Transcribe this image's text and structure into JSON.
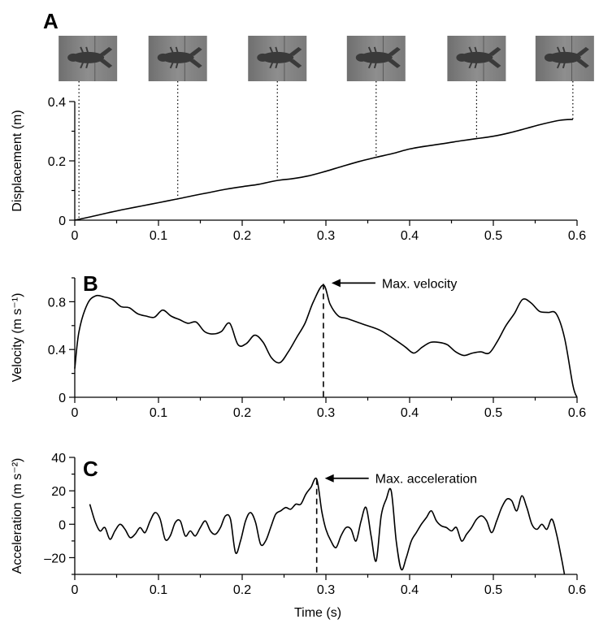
{
  "chart_data": [
    {
      "panel": "A",
      "type": "line",
      "ylabel": "Displacement (m)",
      "xlim": [
        0,
        0.6
      ],
      "ylim": [
        0,
        0.4
      ],
      "xticks": [
        "0",
        "0.1",
        "0.2",
        "0.3",
        "0.4",
        "0.5",
        "0.6"
      ],
      "yticks": [
        "0",
        "0.2",
        "0.4"
      ],
      "frame_times": [
        0.005,
        0.123,
        0.242,
        0.36,
        0.48,
        0.595
      ],
      "frames": [
        "crayfish-frame-1",
        "crayfish-frame-2",
        "crayfish-frame-3",
        "crayfish-frame-4",
        "crayfish-frame-5",
        "crayfish-frame-6"
      ],
      "x": [
        0,
        0.02,
        0.04,
        0.06,
        0.08,
        0.1,
        0.12,
        0.14,
        0.16,
        0.18,
        0.2,
        0.22,
        0.24,
        0.26,
        0.28,
        0.3,
        0.32,
        0.34,
        0.36,
        0.38,
        0.4,
        0.42,
        0.44,
        0.46,
        0.48,
        0.5,
        0.52,
        0.54,
        0.56,
        0.58,
        0.595
      ],
      "y": [
        0,
        0.012,
        0.025,
        0.037,
        0.048,
        0.059,
        0.07,
        0.082,
        0.093,
        0.104,
        0.113,
        0.121,
        0.133,
        0.14,
        0.15,
        0.165,
        0.182,
        0.198,
        0.212,
        0.225,
        0.24,
        0.25,
        0.258,
        0.267,
        0.275,
        0.283,
        0.295,
        0.31,
        0.325,
        0.337,
        0.34
      ]
    },
    {
      "panel": "B",
      "type": "line",
      "ylabel": "Velocity (m s⁻¹)",
      "xlim": [
        0,
        0.6
      ],
      "ylim": [
        0,
        1.0
      ],
      "xticks": [
        "0",
        "0.1",
        "0.2",
        "0.3",
        "0.4",
        "0.5",
        "0.6"
      ],
      "yticks": [
        "0",
        "0.4",
        "0.8"
      ],
      "annotation": {
        "text": "Max. velocity",
        "x": 0.297,
        "y": 0.95
      },
      "x": [
        0,
        0.005,
        0.015,
        0.025,
        0.035,
        0.045,
        0.055,
        0.065,
        0.075,
        0.085,
        0.095,
        0.105,
        0.115,
        0.125,
        0.135,
        0.145,
        0.155,
        0.165,
        0.175,
        0.185,
        0.195,
        0.205,
        0.215,
        0.225,
        0.235,
        0.245,
        0.255,
        0.265,
        0.275,
        0.285,
        0.297,
        0.305,
        0.315,
        0.325,
        0.345,
        0.365,
        0.385,
        0.395,
        0.405,
        0.415,
        0.425,
        0.435,
        0.445,
        0.455,
        0.465,
        0.475,
        0.485,
        0.495,
        0.505,
        0.515,
        0.525,
        0.535,
        0.545,
        0.555,
        0.565,
        0.575,
        0.585,
        0.595,
        0.6
      ],
      "y": [
        0.24,
        0.55,
        0.78,
        0.85,
        0.84,
        0.82,
        0.76,
        0.75,
        0.7,
        0.68,
        0.67,
        0.73,
        0.68,
        0.65,
        0.62,
        0.63,
        0.55,
        0.53,
        0.55,
        0.62,
        0.44,
        0.45,
        0.52,
        0.46,
        0.33,
        0.29,
        0.38,
        0.5,
        0.62,
        0.8,
        0.94,
        0.78,
        0.68,
        0.66,
        0.61,
        0.56,
        0.47,
        0.42,
        0.37,
        0.42,
        0.46,
        0.46,
        0.44,
        0.38,
        0.35,
        0.37,
        0.38,
        0.37,
        0.47,
        0.6,
        0.7,
        0.82,
        0.79,
        0.72,
        0.71,
        0.7,
        0.5,
        0.1,
        0.0
      ]
    },
    {
      "panel": "C",
      "type": "line",
      "xlabel": "Time (s)",
      "ylabel": "Acceleration (m s⁻²)",
      "xlim": [
        0,
        0.6
      ],
      "ylim": [
        -30,
        40
      ],
      "xticks": [
        "0",
        "0.1",
        "0.2",
        "0.3",
        "0.4",
        "0.5",
        "0.6"
      ],
      "yticks": [
        "–20",
        "0",
        "20",
        "40"
      ],
      "annotation": {
        "text": "Max. acceleration",
        "x": 0.289,
        "y": 27
      },
      "x": [
        0.018,
        0.024,
        0.03,
        0.036,
        0.042,
        0.048,
        0.054,
        0.06,
        0.066,
        0.072,
        0.078,
        0.084,
        0.09,
        0.096,
        0.102,
        0.108,
        0.114,
        0.12,
        0.126,
        0.132,
        0.138,
        0.144,
        0.15,
        0.156,
        0.162,
        0.168,
        0.174,
        0.18,
        0.186,
        0.192,
        0.198,
        0.204,
        0.21,
        0.216,
        0.222,
        0.228,
        0.234,
        0.24,
        0.246,
        0.252,
        0.258,
        0.264,
        0.27,
        0.276,
        0.282,
        0.289,
        0.295,
        0.3,
        0.306,
        0.312,
        0.318,
        0.324,
        0.33,
        0.336,
        0.342,
        0.348,
        0.354,
        0.36,
        0.366,
        0.372,
        0.378,
        0.384,
        0.39,
        0.396,
        0.402,
        0.408,
        0.414,
        0.42,
        0.426,
        0.432,
        0.438,
        0.444,
        0.45,
        0.456,
        0.462,
        0.468,
        0.474,
        0.48,
        0.486,
        0.492,
        0.498,
        0.504,
        0.51,
        0.516,
        0.522,
        0.528,
        0.534,
        0.54,
        0.546,
        0.552,
        0.558,
        0.564,
        0.57,
        0.576,
        0.582,
        0.585
      ],
      "y": [
        12,
        2,
        -4,
        -2,
        -9,
        -4,
        0,
        -3,
        -8,
        -6,
        -2,
        -5,
        2,
        7,
        3,
        -9,
        -7,
        1,
        2,
        -7,
        -4,
        -7,
        -2,
        2,
        -4,
        -6,
        -2,
        5,
        3,
        -17,
        -10,
        2,
        7,
        1,
        -12,
        -10,
        -2,
        6,
        8,
        10,
        9,
        12,
        12,
        18,
        22,
        27,
        8,
        -3,
        -10,
        -14,
        -7,
        -2,
        -3,
        -10,
        2,
        10,
        -7,
        -22,
        5,
        15,
        20,
        -10,
        -27,
        -20,
        -10,
        -5,
        0,
        4,
        8,
        2,
        -1,
        -2,
        -4,
        -2,
        -10,
        -6,
        -2,
        3,
        5,
        2,
        -5,
        2,
        10,
        15,
        14,
        8,
        17,
        10,
        0,
        -3,
        0,
        -3,
        3,
        -7,
        -22,
        -30
      ]
    }
  ]
}
